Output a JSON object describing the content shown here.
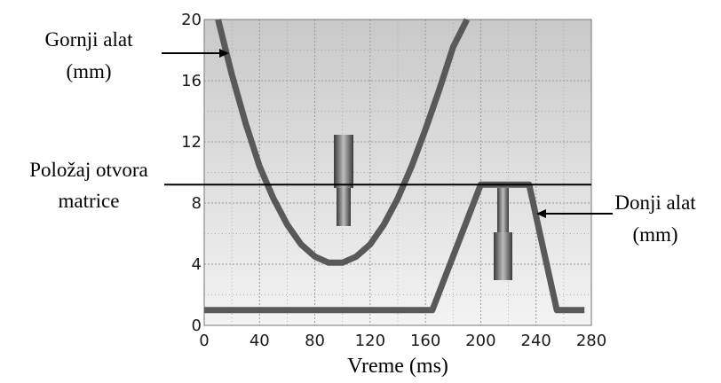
{
  "chart_data": {
    "type": "line",
    "title": "",
    "xlabel": "Vreme (ms)",
    "ylabel": "",
    "xlim": [
      0,
      280
    ],
    "ylim": [
      0,
      20
    ],
    "x_ticks": [
      0,
      40,
      80,
      120,
      160,
      200,
      240,
      280
    ],
    "y_ticks": [
      0,
      4,
      8,
      12,
      16,
      20
    ],
    "grid": true,
    "legend": "none",
    "series": [
      {
        "name": "Gornji alat (mm)",
        "x": [
          10,
          20,
          30,
          40,
          50,
          60,
          70,
          80,
          90,
          100,
          110,
          120,
          130,
          140,
          150,
          160,
          170,
          180,
          190
        ],
        "y": [
          20,
          16.4,
          13.2,
          10.4,
          8.3,
          6.6,
          5.3,
          4.5,
          4.1,
          4.1,
          4.5,
          5.3,
          6.6,
          8.3,
          10.4,
          12.8,
          15.4,
          18.2,
          20
        ]
      },
      {
        "name": "Donji alat (mm)",
        "x": [
          0,
          165,
          200,
          235,
          255,
          275
        ],
        "y": [
          1,
          1,
          9.2,
          9.2,
          1,
          1
        ]
      }
    ],
    "reference_line": {
      "label": "Položaj otvora matrice",
      "y": 9.2
    },
    "annotations": [
      {
        "text_lines": [
          "Gornji alat",
          "(mm)"
        ],
        "side": "left",
        "target_series": 0
      },
      {
        "text_lines": [
          "Položaj otvora",
          "matrice"
        ],
        "side": "left",
        "target": "reference_line"
      },
      {
        "text_lines": [
          "Donji alat",
          "(mm)"
        ],
        "side": "right",
        "target_series": 1
      }
    ],
    "colors": {
      "series": "#595959",
      "reference_line": "#000000",
      "grid": "#9a9a9a",
      "plot_bg_top": "#c9c9c9",
      "plot_bg_bottom": "#f3f3f3"
    }
  }
}
